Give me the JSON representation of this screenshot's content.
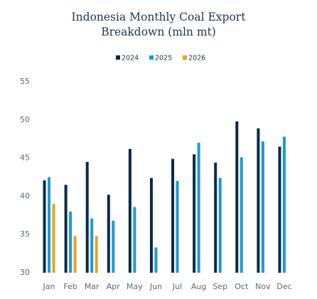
{
  "chart_data": {
    "type": "bar",
    "title": "Indonesia Monthly Coal Export Breakdown (mln mt)",
    "categories": [
      "Jan",
      "Feb",
      "Mar",
      "Apr",
      "May",
      "Jun",
      "Jul",
      "Aug",
      "Sep",
      "Oct",
      "Nov",
      "Dec"
    ],
    "series": [
      {
        "name": "2024",
        "color": "#0b2a4a",
        "values": [
          42.1,
          41.5,
          44.5,
          40.2,
          46.2,
          42.4,
          44.9,
          45.5,
          44.4,
          49.8,
          48.9,
          46.5
        ]
      },
      {
        "name": "2025",
        "color": "#1a9ad6",
        "values": [
          42.5,
          38.0,
          37.1,
          36.8,
          38.6,
          33.3,
          42.0,
          47.0,
          42.4,
          45.1,
          47.2,
          47.8
        ]
      },
      {
        "name": "2026",
        "color": "#e0a526",
        "values": [
          39.0,
          34.8,
          34.8,
          null,
          null,
          null,
          null,
          null,
          null,
          null,
          null,
          null
        ]
      }
    ],
    "ylim": [
      30,
      55
    ],
    "yticks": [
      30,
      35,
      40,
      45,
      50,
      55
    ],
    "grid": false,
    "legend": "top"
  }
}
